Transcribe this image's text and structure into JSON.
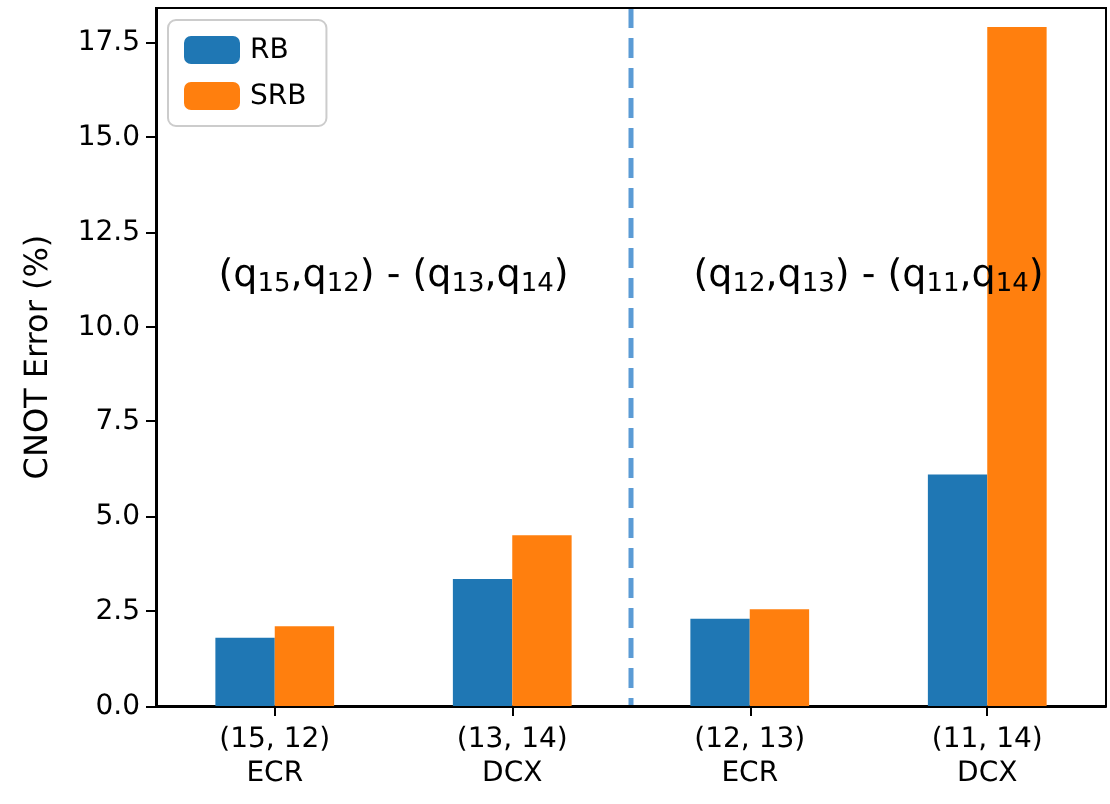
{
  "chart_data": {
    "type": "bar",
    "ylabel": "CNOT Error (%)",
    "categories": [
      "(15, 12)\nECR",
      "(13, 14)\nDCX",
      "(12, 13)\nECR",
      "(11, 14)\nDCX"
    ],
    "series": [
      {
        "name": "RB",
        "color": "#1f77b4",
        "values": [
          1.8,
          3.35,
          2.3,
          6.1
        ]
      },
      {
        "name": "SRB",
        "color": "#ff7f0e",
        "values": [
          2.1,
          4.5,
          2.55,
          17.9
        ]
      }
    ],
    "ylim": [
      0,
      18.4
    ],
    "yticks": [
      {
        "value": 0,
        "label": "0.0"
      },
      {
        "value": 2.5,
        "label": "2.5"
      },
      {
        "value": 5,
        "label": "5.0"
      },
      {
        "value": 7.5,
        "label": "7.5"
      },
      {
        "value": 10,
        "label": "10.0"
      },
      {
        "value": 12.5,
        "label": "12.5"
      },
      {
        "value": 15,
        "label": "15.0"
      },
      {
        "value": 17.5,
        "label": "17.5"
      }
    ],
    "annotations": [
      "(q$_{15}$,q$_{12}$) - (q$_{13}$,q$_{14}$)",
      "(q$_{12}$,q$_{13}$) - (q$_{11}$,q$_{14}$)"
    ],
    "legend": "top left",
    "grid": false
  }
}
